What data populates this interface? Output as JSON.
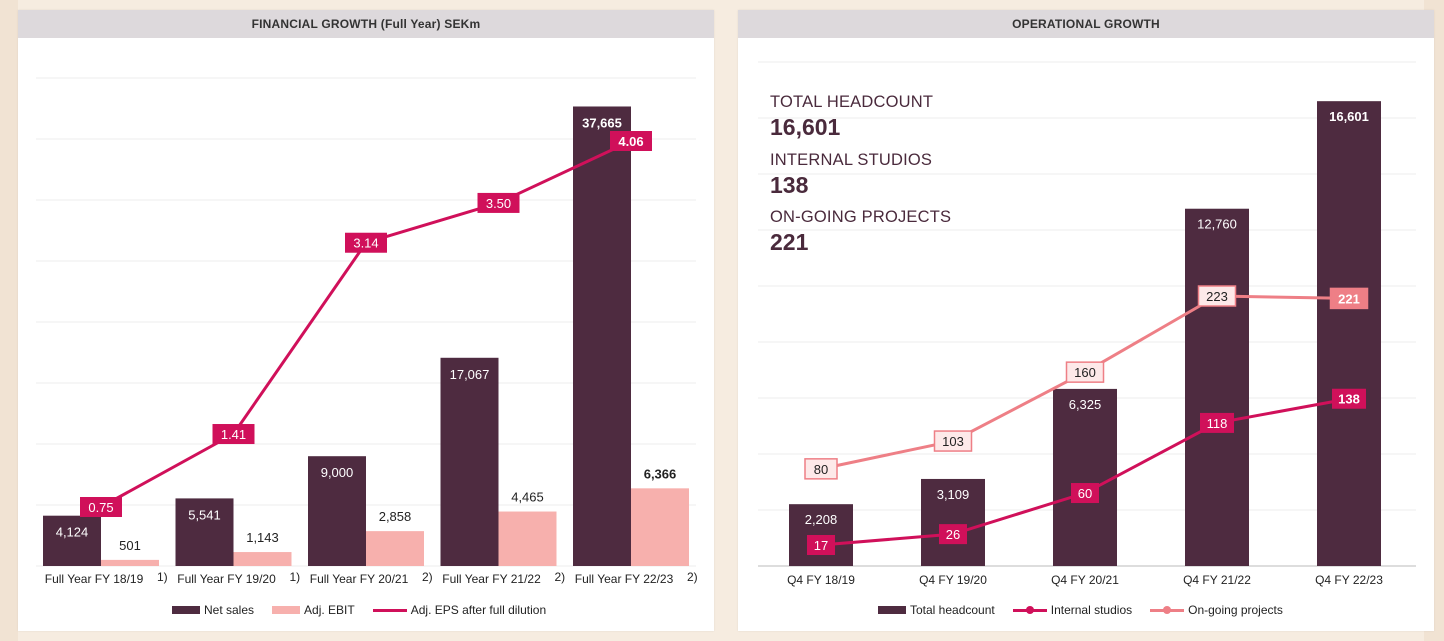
{
  "colors": {
    "netSales": "#4e2b40",
    "adjEbit": "#f7b0ad",
    "eps": "#d0105a",
    "headcount": "#4e2b40",
    "studios": "#d0105a",
    "projects": "#ee7f86"
  },
  "left": {
    "header": "FINANCIAL GROWTH (Full Year) SEKm",
    "footnotes": [
      "1)",
      "1)",
      "2)",
      "2)",
      "2)"
    ],
    "legend": [
      "Net sales",
      "Adj. EBIT",
      "Adj. EPS after full dilution"
    ],
    "chart_data": {
      "type": "bar",
      "title": "FINANCIAL GROWTH (Full Year) SEKm",
      "categories": [
        "Full Year FY 18/19",
        "Full Year FY 19/20",
        "Full Year FY 20/21",
        "Full Year FY 21/22",
        "Full Year FY 22/23"
      ],
      "series": [
        {
          "name": "Net sales",
          "type": "bar",
          "values": [
            4124,
            5541,
            9000,
            17067,
            37665
          ],
          "labels": [
            "4,124",
            "5,541",
            "9,000",
            "17,067",
            "37,665"
          ]
        },
        {
          "name": "Adj. EBIT",
          "type": "bar",
          "values": [
            501,
            1143,
            2858,
            4465,
            6366
          ],
          "labels": [
            "501",
            "1,143",
            "2,858",
            "4,465",
            "6,366"
          ]
        },
        {
          "name": "Adj. EPS after full dilution",
          "type": "line",
          "values": [
            0.75,
            1.41,
            3.14,
            3.5,
            4.06
          ],
          "labels": [
            "0.75",
            "1.41",
            "3.14",
            "3.50",
            "4.06"
          ]
        }
      ],
      "ylim": [
        0,
        40000
      ],
      "grid": true,
      "legend": "bottom"
    }
  },
  "right": {
    "header": "OPERATIONAL GROWTH",
    "kpis": [
      {
        "label": "TOTAL HEADCOUNT",
        "value": "16,601"
      },
      {
        "label": "INTERNAL STUDIOS",
        "value": "138"
      },
      {
        "label": "ON-GOING PROJECTS",
        "value": "221"
      }
    ],
    "legend": [
      "Total headcount",
      "Internal studios",
      "On-going projects"
    ],
    "chart_data": {
      "type": "bar",
      "title": "OPERATIONAL GROWTH",
      "categories": [
        "Q4 FY 18/19",
        "Q4 FY 19/20",
        "Q4 FY 20/21",
        "Q4 FY 21/22",
        "Q4 FY 22/23"
      ],
      "series": [
        {
          "name": "Total headcount",
          "type": "bar",
          "values": [
            2208,
            3109,
            6325,
            12760,
            16601
          ],
          "labels": [
            "2,208",
            "3,109",
            "6,325",
            "12,760",
            "16,601"
          ]
        },
        {
          "name": "Internal studios",
          "type": "line",
          "values": [
            17,
            26,
            60,
            118,
            138
          ],
          "labels": [
            "17",
            "26",
            "60",
            "118",
            "138"
          ]
        },
        {
          "name": "On-going projects",
          "type": "line",
          "values": [
            80,
            103,
            160,
            223,
            221
          ],
          "labels": [
            "80",
            "103",
            "160",
            "223",
            "221"
          ]
        }
      ],
      "ylim": [
        0,
        18000
      ],
      "grid": true,
      "legend": "bottom"
    }
  }
}
